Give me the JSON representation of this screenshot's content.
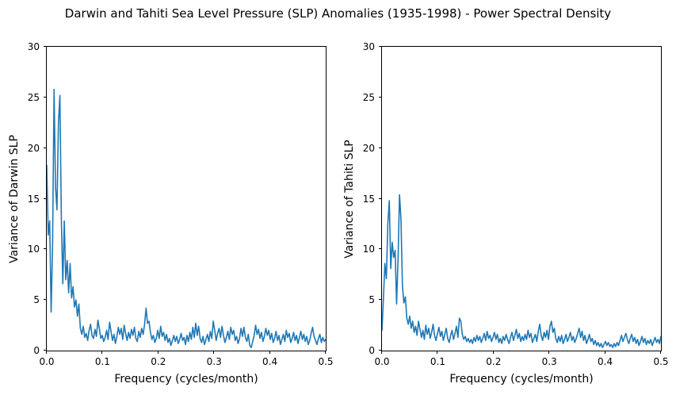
{
  "title": "Darwin and Tahiti Sea Level Pressure (SLP) Anomalies (1935-1998) - Power Spectral Density",
  "colors": {
    "line": "#1f77b4",
    "axis": "#000000",
    "background": "#ffffff"
  },
  "chart_data": [
    {
      "type": "line",
      "name": "darwin-psd",
      "xlabel": "Frequency (cycles/month)",
      "ylabel": "Variance of Darwin SLP",
      "xlim": [
        0,
        0.5
      ],
      "ylim": [
        0,
        30
      ],
      "xticks": [
        0.0,
        0.1,
        0.2,
        0.3,
        0.4,
        0.5
      ],
      "xtick_labels": [
        "0.0",
        "0.1",
        "0.2",
        "0.3",
        "0.4",
        "0.5"
      ],
      "yticks": [
        0,
        5,
        10,
        15,
        20,
        25,
        30
      ],
      "ytick_labels": [
        "0",
        "5",
        "10",
        "15",
        "20",
        "25",
        "30"
      ],
      "grid": false,
      "legend": null,
      "x_start": 0,
      "x_step": 0.0026178,
      "y": [
        18.3,
        11.4,
        12.8,
        3.8,
        10.5,
        25.8,
        16.2,
        13.9,
        22.5,
        25.2,
        13.0,
        6.6,
        12.8,
        7.0,
        8.9,
        5.7,
        8.6,
        5.2,
        6.3,
        4.3,
        5.0,
        3.4,
        4.6,
        2.2,
        1.6,
        2.4,
        1.3,
        1.7,
        1.0,
        2.0,
        2.6,
        1.5,
        1.2,
        2.1,
        1.4,
        3.0,
        2.2,
        1.2,
        1.5,
        0.9,
        1.3,
        2.0,
        1.1,
        2.8,
        1.9,
        1.0,
        1.6,
        0.7,
        1.4,
        2.3,
        1.6,
        2.2,
        1.1,
        2.5,
        1.7,
        1.0,
        1.8,
        1.2,
        2.1,
        1.5,
        2.3,
        1.2,
        0.9,
        1.9,
        1.3,
        2.2,
        1.6,
        2.6,
        4.2,
        2.7,
        2.9,
        1.8,
        1.1,
        1.5,
        0.8,
        1.2,
        2.0,
        1.2,
        2.4,
        1.4,
        1.8,
        1.0,
        1.6,
        0.8,
        1.2,
        0.5,
        1.0,
        1.5,
        0.9,
        1.4,
        0.7,
        1.1,
        1.7,
        1.0,
        1.3,
        0.6,
        1.5,
        0.9,
        1.8,
        1.1,
        2.3,
        1.3,
        2.7,
        1.5,
        2.4,
        1.2,
        0.8,
        1.4,
        0.6,
        1.1,
        1.6,
        0.9,
        1.9,
        1.2,
        2.9,
        2.0,
        1.0,
        1.7,
        2.2,
        1.3,
        2.4,
        1.5,
        0.8,
        1.3,
        1.9,
        1.1,
        2.3,
        1.6,
        2.0,
        1.0,
        1.4,
        0.7,
        1.2,
        2.2,
        1.4,
        2.3,
        1.3,
        0.9,
        1.6,
        0.5,
        0.3,
        0.9,
        1.5,
        2.5,
        1.6,
        2.1,
        1.2,
        1.8,
        0.9,
        1.4,
        2.2,
        1.5,
        2.0,
        1.1,
        1.7,
        0.8,
        1.2,
        1.9,
        1.0,
        1.5,
        0.6,
        1.1,
        1.6,
        0.9,
        2.0,
        1.3,
        1.7,
        0.8,
        1.2,
        1.8,
        1.0,
        1.5,
        0.7,
        1.3,
        1.9,
        1.1,
        1.6,
        0.9,
        1.4,
        0.6,
        1.0,
        1.7,
        2.3,
        1.4,
        1.0,
        0.6,
        1.2,
        1.6,
        0.8,
        1.3,
        0.9,
        1.1
      ]
    },
    {
      "type": "line",
      "name": "tahiti-psd",
      "xlabel": "Frequency (cycles/month)",
      "ylabel": "Variance of Tahiti SLP",
      "xlim": [
        0,
        0.5
      ],
      "ylim": [
        0,
        30
      ],
      "xticks": [
        0.0,
        0.1,
        0.2,
        0.3,
        0.4,
        0.5
      ],
      "xtick_labels": [
        "0.0",
        "0.1",
        "0.2",
        "0.3",
        "0.4",
        "0.5"
      ],
      "yticks": [
        0,
        5,
        10,
        15,
        20,
        25,
        30
      ],
      "ytick_labels": [
        "0",
        "5",
        "10",
        "15",
        "20",
        "25",
        "30"
      ],
      "grid": false,
      "legend": null,
      "x_start": 0,
      "x_step": 0.0026178,
      "y": [
        2.0,
        5.2,
        8.6,
        7.1,
        12.5,
        14.8,
        8.1,
        10.7,
        9.2,
        9.9,
        4.6,
        9.0,
        15.4,
        13.0,
        6.4,
        4.7,
        5.3,
        3.2,
        2.6,
        3.4,
        2.2,
        2.9,
        1.8,
        2.4,
        1.5,
        2.9,
        2.1,
        1.3,
        2.0,
        1.1,
        2.5,
        1.6,
        2.2,
        1.2,
        1.8,
        2.6,
        1.5,
        1.0,
        1.7,
        2.3,
        1.4,
        1.9,
        1.0,
        1.6,
        2.2,
        1.2,
        0.8,
        1.5,
        2.0,
        1.1,
        1.7,
        2.4,
        1.3,
        3.2,
        2.9,
        1.6,
        1.1,
        1.4,
        0.9,
        1.2,
        0.8,
        1.1,
        0.7,
        1.3,
        0.9,
        1.5,
        1.0,
        1.4,
        0.8,
        1.2,
        1.7,
        1.0,
        1.9,
        1.2,
        1.5,
        0.9,
        1.3,
        1.8,
        1.1,
        1.6,
        0.8,
        1.2,
        0.7,
        1.4,
        1.0,
        1.6,
        1.1,
        0.7,
        1.3,
        1.8,
        1.0,
        1.5,
        2.1,
        1.2,
        1.7,
        0.9,
        1.4,
        1.0,
        1.6,
        1.1,
        2.0,
        1.3,
        1.7,
        0.8,
        1.2,
        1.6,
        0.9,
        1.9,
        2.6,
        1.5,
        1.0,
        1.8,
        1.3,
        2.0,
        1.1,
        2.4,
        2.9,
        1.8,
        2.2,
        1.2,
        0.8,
        1.4,
        0.9,
        1.5,
        0.7,
        1.1,
        1.6,
        0.9,
        1.3,
        1.8,
        1.0,
        1.4,
        0.8,
        1.2,
        1.7,
        2.2,
        1.3,
        1.9,
        1.0,
        1.5,
        0.7,
        1.1,
        1.6,
        0.9,
        1.2,
        0.6,
        1.0,
        0.5,
        0.8,
        0.4,
        0.7,
        0.3,
        0.6,
        0.9,
        0.5,
        0.8,
        0.4,
        0.6,
        0.3,
        0.7,
        0.4,
        0.8,
        0.5,
        1.0,
        1.5,
        0.9,
        1.3,
        1.7,
        1.1,
        0.7,
        1.2,
        1.6,
        0.9,
        1.3,
        0.7,
        1.1,
        0.5,
        0.9,
        1.4,
        0.8,
        1.2,
        0.6,
        1.0,
        0.7,
        1.1,
        0.5,
        0.9,
        1.3,
        0.8,
        1.1,
        0.7,
        1.4
      ]
    }
  ]
}
